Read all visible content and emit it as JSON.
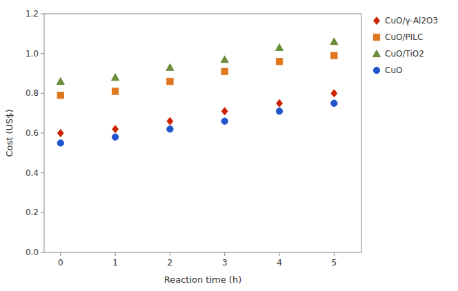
{
  "chart_data": {
    "type": "scatter",
    "x_label": "Reaction time (h)",
    "y_label": "Cost (US$)",
    "x": [
      0,
      1,
      2,
      3,
      4,
      5
    ],
    "series": [
      {
        "name": "CuO/γ-Al2O3",
        "color": "#cc2200",
        "marker": "diamond",
        "values": [
          0.6,
          0.62,
          0.66,
          0.71,
          0.75,
          0.8
        ]
      },
      {
        "name": "CuO/PILC",
        "color": "#e07820",
        "marker": "square",
        "values": [
          0.79,
          0.81,
          0.86,
          0.91,
          0.96,
          0.99
        ]
      },
      {
        "name": "CuO/TiO2",
        "color": "#6b8c3a",
        "marker": "triangle",
        "values": [
          0.86,
          0.88,
          0.93,
          0.97,
          1.03,
          1.06
        ]
      },
      {
        "name": "CuO",
        "color": "#2255cc",
        "marker": "circle",
        "values": [
          0.55,
          0.58,
          0.62,
          0.66,
          0.71,
          0.75
        ]
      }
    ],
    "xlim": [
      -0.3,
      5.5
    ],
    "ylim": [
      0,
      1.2
    ],
    "xticks": [
      0,
      1,
      2,
      3,
      4,
      5
    ],
    "yticks": [
      {
        "value": 0,
        "label": "0.0"
      },
      0.2,
      0.4,
      0.6,
      0.8,
      {
        "value": 1.0,
        "label": "1.0"
      },
      1.2
    ],
    "grid": false,
    "legend": "right"
  }
}
